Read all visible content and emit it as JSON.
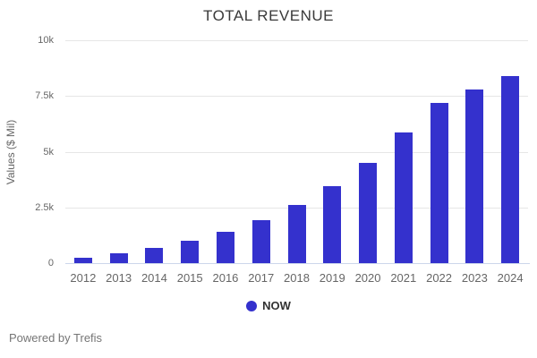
{
  "chart_data": {
    "type": "bar",
    "title": "TOTAL REVENUE",
    "xlabel": "",
    "ylabel": "Values ($ Mil)",
    "categories": [
      "2012",
      "2013",
      "2014",
      "2015",
      "2016",
      "2017",
      "2018",
      "2019",
      "2020",
      "2021",
      "2022",
      "2023",
      "2024"
    ],
    "series": [
      {
        "name": "NOW",
        "values": [
          250,
          430,
          680,
          1000,
          1390,
          1930,
          2600,
          3450,
          4500,
          5850,
          7200,
          7800,
          8400
        ],
        "color": "#3431cd"
      }
    ],
    "ylim": [
      0,
      10000
    ],
    "yticks": [
      0,
      2500,
      5000,
      7500,
      10000
    ],
    "ytick_labels": [
      "0",
      "2.5k",
      "5k",
      "7.5k",
      "10k"
    ],
    "grid": true,
    "legend_position": "bottom"
  },
  "footer": {
    "text": "Powered by Trefis"
  },
  "colors": {
    "bar": "#3431cd",
    "grid": "#e6e6e6",
    "axis_line": "#ccd6eb",
    "title_text": "#3a3a3a",
    "tick_text": "#666666",
    "legend_text": "#333333",
    "footer_text": "#757575",
    "background": "#ffffff"
  }
}
